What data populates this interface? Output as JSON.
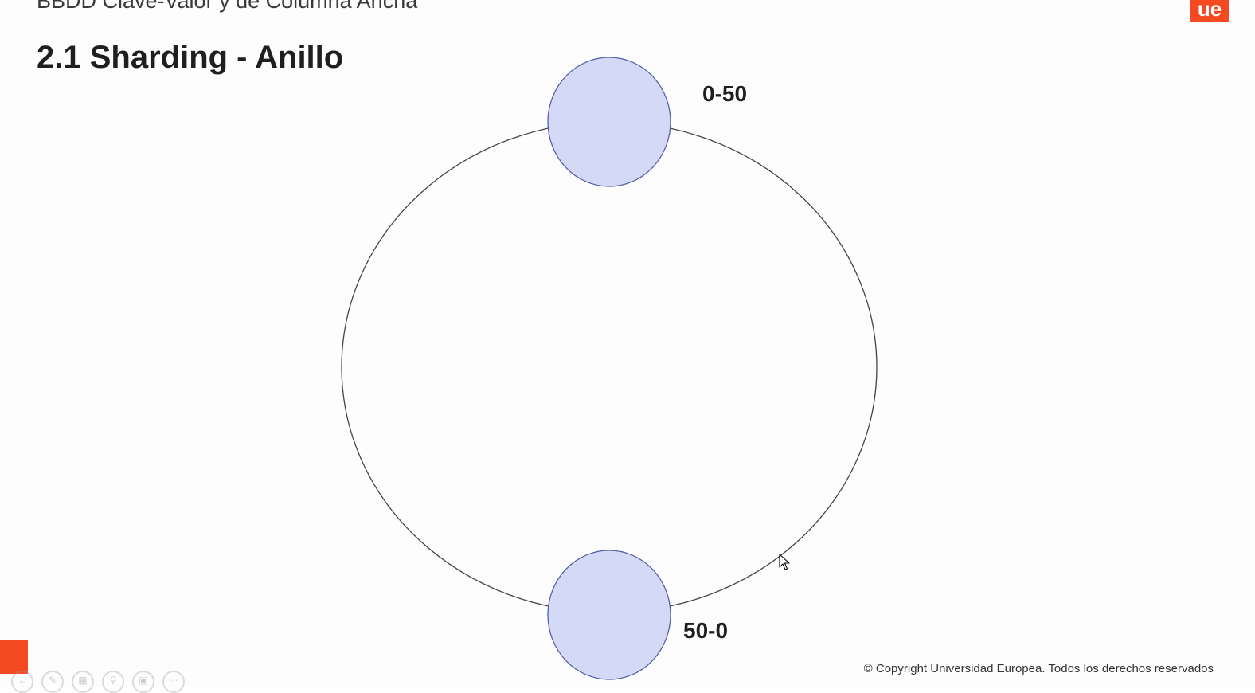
{
  "slide": {
    "header": "BBDD Clave-Valor y de Columna Ancha",
    "logo_text": "ue",
    "title": "2.1 Sharding - Anillo",
    "copyright": "© Copyright Universidad Europea. Todos los derechos reservados"
  },
  "diagram": {
    "nodes": [
      {
        "label": "0-50",
        "position": "top"
      },
      {
        "label": "50-0",
        "position": "bottom"
      }
    ],
    "node_fill": "#d4daf5",
    "node_stroke": "#5561a8",
    "ring_stroke": "#444444"
  },
  "colors": {
    "accent": "#f44a22"
  },
  "toolbar": {
    "icons": [
      "back-arrow-icon",
      "pen-icon",
      "slides-icon",
      "zoom-icon",
      "subtitle-icon",
      "more-icon"
    ]
  }
}
